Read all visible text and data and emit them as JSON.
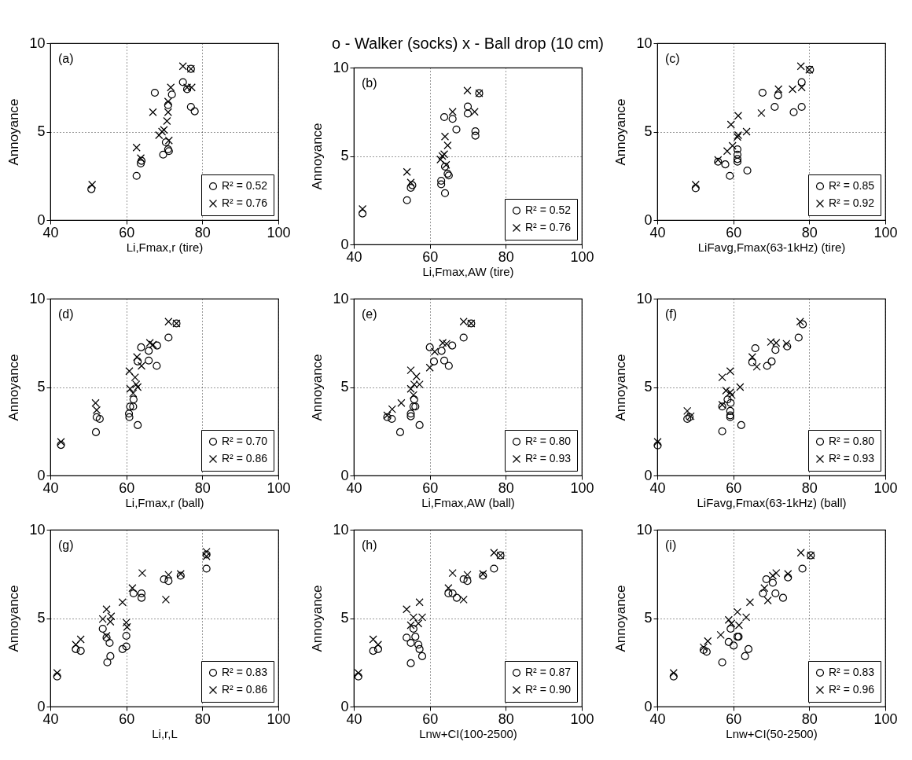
{
  "chart_data": [
    {
      "type": "scatter",
      "xlabel": "Li,Fmax,r (tire)",
      "ylabel": "Annoyance",
      "xlim": [
        40,
        100
      ],
      "ylim": [
        0,
        10
      ],
      "xticks": [
        40,
        60,
        80,
        100
      ],
      "yticks": [
        0,
        5,
        10
      ],
      "grid": true,
      "legend": "bottom right",
      "annotations": [
        "(a)"
      ],
      "series": [
        {
          "name": "R² = 0.52",
          "color": "#000000",
          "marker": "circle",
          "x": [
            50.8,
            62.7,
            63.8,
            64,
            67.5,
            69.7,
            70.4,
            71,
            71.2,
            71,
            72,
            74.9,
            76,
            77,
            78,
            77
          ],
          "values": [
            1.75,
            2.5,
            3.2,
            3.35,
            7.2,
            3.7,
            4.4,
            4.0,
            3.9,
            6.5,
            7.1,
            7.8,
            7.4,
            6.4,
            6.15,
            8.55
          ]
        },
        {
          "name": "R² = 0.76",
          "color": "#000000",
          "marker": "cross",
          "x": [
            51,
            62.7,
            63.8,
            67,
            68.6,
            69.4,
            69.9,
            70.7,
            71,
            71,
            71.7,
            74.9,
            77,
            76,
            77.2,
            71.2
          ],
          "values": [
            2.0,
            4.1,
            3.5,
            6.1,
            4.8,
            5.0,
            5.1,
            5.6,
            6.1,
            6.7,
            7.5,
            8.7,
            8.55,
            7.5,
            7.5,
            4.5
          ]
        }
      ]
    },
    {
      "type": "scatter",
      "title": "o - Walker (socks)   x - Ball drop (10 cm)",
      "xlabel": "Li,Fmax,AW (tire)",
      "ylabel": "Annoyance",
      "xlim": [
        40,
        100
      ],
      "ylim": [
        0,
        10
      ],
      "xticks": [
        40,
        60,
        80,
        100
      ],
      "yticks": [
        0,
        5,
        10
      ],
      "grid": true,
      "legend": "bottom right",
      "annotations": [
        "(b)"
      ],
      "series": [
        {
          "name": "R² = 0.52",
          "color": "#000000",
          "marker": "circle",
          "x": [
            42.3,
            54,
            55,
            55.4,
            63,
            63,
            64,
            64,
            64.7,
            65,
            63.8,
            66,
            67,
            70,
            70,
            72,
            72,
            73
          ],
          "values": [
            1.75,
            2.5,
            3.2,
            3.35,
            3.6,
            3.4,
            2.9,
            4.4,
            4.0,
            3.9,
            7.2,
            7.1,
            6.5,
            7.8,
            7.4,
            6.4,
            6.15,
            8.55
          ]
        },
        {
          "name": "R² = 0.76",
          "color": "#000000",
          "marker": "cross",
          "x": [
            42.3,
            54,
            55,
            62.8,
            63.3,
            63.8,
            64,
            64.7,
            66,
            69.9,
            71.8,
            73,
            64.3
          ],
          "values": [
            2.0,
            4.1,
            3.5,
            4.8,
            5.0,
            5.1,
            6.1,
            5.6,
            7.5,
            8.7,
            7.5,
            8.55,
            4.5
          ]
        }
      ]
    },
    {
      "type": "scatter",
      "xlabel": "LiFavg,Fmax(63-1kHz) (tire)",
      "ylabel": "Annoyance",
      "xlim": [
        40,
        100
      ],
      "ylim": [
        0,
        10
      ],
      "xticks": [
        40,
        60,
        80,
        100
      ],
      "yticks": [
        0,
        5,
        10
      ],
      "grid": true,
      "legend": "bottom right",
      "annotations": [
        "(c)"
      ],
      "series": [
        {
          "name": "R² = 0.85",
          "color": "#000000",
          "marker": "circle",
          "x": [
            50.1,
            56,
            57.9,
            59.1,
            61.1,
            61.1,
            61.1,
            61.1,
            63.7,
            67.7,
            70.9,
            71.8,
            75.9,
            78,
            78,
            80.2
          ],
          "values": [
            1.8,
            3.3,
            3.15,
            2.5,
            4.0,
            3.7,
            3.45,
            3.3,
            2.8,
            7.2,
            6.4,
            7.05,
            6.1,
            6.4,
            7.8,
            8.5
          ]
        },
        {
          "name": "R² = 0.92",
          "color": "#000000",
          "marker": "cross",
          "x": [
            50.1,
            56,
            58.4,
            59.4,
            61.3,
            61.1,
            61.3,
            63.5,
            67.4,
            71.9,
            75.6,
            78,
            77.8,
            80,
            59.8
          ],
          "values": [
            2.0,
            3.4,
            3.9,
            5.4,
            5.9,
            4.7,
            4.8,
            5.0,
            6.05,
            7.4,
            7.4,
            7.5,
            8.7,
            8.5,
            4.2
          ]
        }
      ]
    },
    {
      "type": "scatter",
      "xlabel": "Li,Fmax,r (ball)",
      "ylabel": "Annoyance",
      "xlim": [
        40,
        100
      ],
      "ylim": [
        0,
        10
      ],
      "xticks": [
        40,
        60,
        80,
        100
      ],
      "yticks": [
        0,
        5,
        10
      ],
      "grid": true,
      "legend": "bottom right",
      "annotations": [
        "(d)"
      ],
      "series": [
        {
          "name": "R² = 0.70",
          "color": "#000000",
          "marker": "circle",
          "x": [
            42.8,
            52,
            52.2,
            53,
            60.7,
            60.8,
            61,
            61.8,
            61.9,
            63,
            63,
            63.9,
            65.9,
            65.9,
            68.1,
            68,
            71.1,
            73.2
          ],
          "values": [
            1.73,
            2.45,
            3.3,
            3.2,
            3.5,
            3.3,
            3.9,
            3.9,
            4.3,
            2.85,
            6.45,
            7.25,
            7.05,
            6.5,
            7.35,
            6.2,
            7.8,
            8.6
          ]
        },
        {
          "name": "R² = 0.86",
          "color": "#000000",
          "marker": "cross",
          "x": [
            42.8,
            51.9,
            52.2,
            60.8,
            61.8,
            61,
            62.6,
            63,
            62.3,
            62.8,
            66.2,
            67,
            71.1,
            73.2,
            64
          ],
          "values": [
            1.9,
            4.1,
            3.7,
            5.9,
            4.65,
            4.9,
            5.15,
            5.0,
            5.55,
            6.7,
            7.5,
            7.4,
            8.7,
            8.6,
            6.2
          ]
        }
      ]
    },
    {
      "type": "scatter",
      "xlabel": "Li,Fmax,AW (ball)",
      "ylabel": "Annoyance",
      "xlim": [
        40,
        100
      ],
      "ylim": [
        0,
        10
      ],
      "xticks": [
        40,
        60,
        80,
        100
      ],
      "yticks": [
        0,
        5,
        10
      ],
      "grid": true,
      "legend": "bottom right",
      "annotations": [
        "(e)"
      ],
      "series": [
        {
          "name": "R² = 0.80",
          "color": "#000000",
          "marker": "circle",
          "x": [
            48.8,
            50,
            52.2,
            55,
            55,
            55.7,
            56.2,
            55.9,
            57.3,
            60,
            61.1,
            63.1,
            63.8,
            65,
            65.9,
            68.9,
            70.9
          ],
          "values": [
            3.3,
            3.2,
            2.45,
            3.5,
            3.35,
            3.9,
            3.9,
            4.3,
            2.85,
            7.25,
            6.45,
            7.05,
            6.5,
            6.2,
            7.35,
            7.8,
            8.6
          ]
        },
        {
          "name": "R² = 0.93",
          "color": "#000000",
          "marker": "cross",
          "x": [
            48.8,
            50.1,
            52.5,
            55,
            55,
            55.9,
            56.5,
            57.3,
            55.7,
            60,
            63.4,
            64.4,
            68.9,
            70.9,
            61.3
          ],
          "values": [
            3.4,
            3.75,
            4.1,
            5.95,
            4.9,
            5.15,
            5.6,
            5.15,
            4.55,
            6.1,
            7.5,
            7.45,
            8.7,
            8.6,
            7.0
          ]
        }
      ]
    },
    {
      "type": "scatter",
      "xlabel": "LiFavg,Fmax(63-1kHz) (ball)",
      "ylabel": "Annoyance",
      "xlim": [
        40,
        100
      ],
      "ylim": [
        0,
        10
      ],
      "xticks": [
        40,
        60,
        80,
        100
      ],
      "yticks": [
        0,
        5,
        10
      ],
      "grid": true,
      "legend": "bottom right",
      "annotations": [
        "(f)"
      ],
      "series": [
        {
          "name": "R² = 0.80",
          "color": "#000000",
          "marker": "circle",
          "x": [
            40.1,
            47.9,
            48.5,
            57.1,
            57.1,
            58.5,
            59.2,
            59.2,
            59.2,
            59.3,
            62.1,
            65,
            65.8,
            68.9,
            70.1,
            71.1,
            74.2,
            77.2,
            78.3
          ],
          "values": [
            1.7,
            3.2,
            3.3,
            2.5,
            3.9,
            4.3,
            3.65,
            3.4,
            3.3,
            4.1,
            2.85,
            6.4,
            7.2,
            6.2,
            6.45,
            7.1,
            7.3,
            7.8,
            8.55
          ]
        },
        {
          "name": "R² = 0.93",
          "color": "#000000",
          "marker": "cross",
          "x": [
            40.1,
            47.9,
            48.8,
            57.1,
            57.1,
            59.2,
            58.1,
            59.2,
            59.6,
            61.8,
            65,
            66.2,
            69.9,
            71.3,
            74,
            77.6
          ],
          "values": [
            1.9,
            3.65,
            3.35,
            4.0,
            5.55,
            5.9,
            4.8,
            4.7,
            4.55,
            5.0,
            6.7,
            6.15,
            7.55,
            7.5,
            7.45,
            8.7
          ]
        }
      ]
    },
    {
      "type": "scatter",
      "xlabel": "Li,r,L",
      "ylabel": "Annoyance",
      "xlim": [
        40,
        100
      ],
      "ylim": [
        0,
        10
      ],
      "xticks": [
        40,
        60,
        80,
        100
      ],
      "yticks": [
        0,
        5,
        10
      ],
      "grid": true,
      "legend": "bottom right",
      "annotations": [
        "(g)"
      ],
      "series": [
        {
          "name": "R² = 0.83",
          "color": "#000000",
          "marker": "circle",
          "x": [
            41.8,
            46.7,
            48,
            53.8,
            55,
            55.8,
            55.6,
            54.8,
            59,
            60,
            60,
            61.9,
            64,
            64,
            69.9,
            71.1,
            74.3,
            81.1,
            81.1
          ],
          "values": [
            1.7,
            3.25,
            3.15,
            4.4,
            2.5,
            2.85,
            3.6,
            3.9,
            3.25,
            3.4,
            4.0,
            6.4,
            6.4,
            6.15,
            7.2,
            7.1,
            7.4,
            7.8,
            8.6
          ]
        },
        {
          "name": "R² = 0.86",
          "color": "#000000",
          "marker": "cross",
          "x": [
            41.8,
            46.7,
            48,
            53.8,
            54.8,
            54.8,
            55.8,
            56,
            59,
            60,
            60.2,
            61.6,
            64.2,
            70.4,
            71.1,
            74.3,
            81.1,
            81.1
          ],
          "values": [
            1.9,
            3.5,
            3.8,
            4.95,
            5.5,
            4.0,
            4.8,
            5.1,
            5.9,
            4.75,
            4.5,
            6.7,
            7.55,
            6.05,
            7.45,
            7.5,
            8.75,
            8.5
          ]
        }
      ]
    },
    {
      "type": "scatter",
      "xlabel": "Lnw+CI(100-2500)",
      "ylabel": "Annoyance",
      "xlim": [
        40,
        100
      ],
      "ylim": [
        0,
        10
      ],
      "xticks": [
        40,
        60,
        80,
        100
      ],
      "yticks": [
        0,
        5,
        10
      ],
      "grid": true,
      "legend": "bottom right",
      "annotations": [
        "(h)"
      ],
      "series": [
        {
          "name": "R² = 0.87",
          "color": "#000000",
          "marker": "circle",
          "x": [
            41.2,
            45.1,
            46.4,
            53.9,
            55,
            55,
            56.2,
            55.7,
            57,
            57.3,
            58,
            64.9,
            66,
            67.1,
            68.9,
            69.9,
            74,
            76.9,
            78.6
          ],
          "values": [
            1.7,
            3.15,
            3.25,
            3.9,
            2.45,
            3.6,
            3.95,
            4.4,
            3.5,
            3.25,
            2.85,
            6.4,
            6.4,
            6.15,
            7.2,
            7.1,
            7.4,
            7.8,
            8.55
          ]
        },
        {
          "name": "R² = 0.90",
          "color": "#000000",
          "marker": "cross",
          "x": [
            41.2,
            45.1,
            46.4,
            53.9,
            55,
            55.7,
            57.3,
            57,
            58,
            64.9,
            66,
            68.9,
            69.9,
            74,
            76.9,
            78.6
          ],
          "values": [
            1.9,
            3.8,
            3.5,
            5.5,
            4.6,
            5.05,
            5.9,
            4.7,
            5.05,
            6.7,
            7.55,
            6.05,
            7.45,
            7.5,
            8.7,
            8.55
          ]
        }
      ]
    },
    {
      "type": "scatter",
      "xlabel": "Lnw+CI(50-2500)",
      "ylabel": "Annoyance",
      "xlim": [
        40,
        100
      ],
      "ylim": [
        0,
        10
      ],
      "xticks": [
        40,
        60,
        80,
        100
      ],
      "yticks": [
        0,
        5,
        10
      ],
      "grid": true,
      "legend": "bottom right",
      "annotations": [
        "(i)"
      ],
      "series": [
        {
          "name": "R² = 0.83",
          "color": "#000000",
          "marker": "circle",
          "x": [
            44.3,
            52.2,
            53,
            57.1,
            58.8,
            59.3,
            60.1,
            61.1,
            61.4,
            63.1,
            64,
            67.8,
            68.7,
            70.4,
            71.1,
            73.1,
            74.4,
            78.2,
            80.4
          ],
          "values": [
            1.7,
            3.2,
            3.1,
            2.5,
            3.65,
            4.4,
            3.45,
            3.95,
            3.95,
            2.85,
            3.25,
            6.4,
            7.2,
            7.0,
            6.4,
            6.15,
            7.3,
            7.8,
            8.55
          ]
        },
        {
          "name": "R² = 0.96",
          "color": "#000000",
          "marker": "cross",
          "x": [
            44.3,
            52.2,
            53.3,
            56.7,
            58.8,
            59.5,
            61.1,
            61.5,
            63.4,
            64.4,
            69.1,
            68.2,
            70.4,
            71.3,
            74.4,
            77.8,
            80.4
          ],
          "values": [
            1.9,
            3.35,
            3.7,
            4.05,
            4.9,
            4.7,
            5.35,
            4.6,
            5.05,
            5.9,
            6.0,
            6.7,
            7.4,
            7.55,
            7.5,
            8.7,
            8.55
          ]
        }
      ]
    }
  ]
}
